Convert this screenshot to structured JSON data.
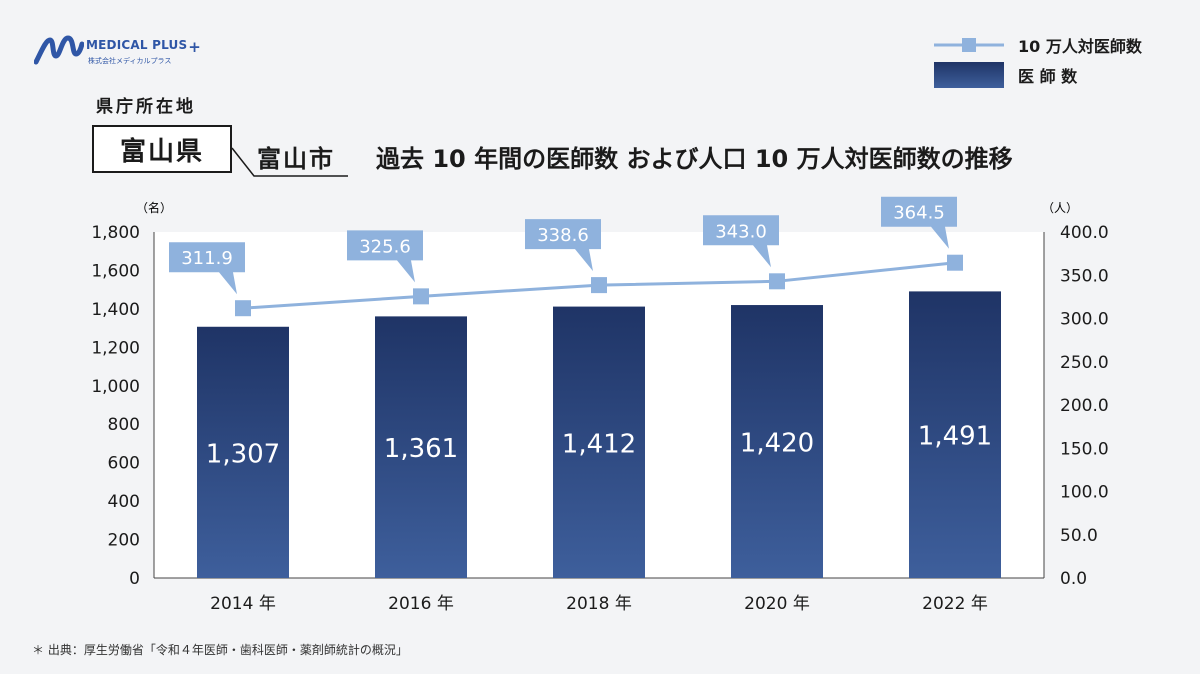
{
  "brand": {
    "name": "MEDICAL PLUS",
    "plus": "+",
    "sub": "株式会社メディカルプラス"
  },
  "header": {
    "capital_label": "県庁所在地",
    "prefecture": "富山県",
    "city": "富山市",
    "title": "過去 10 年間の医師数 および人口 10 万人対医師数の推移"
  },
  "legend": {
    "line_label": "10 万人対医師数",
    "bar_label": "医 師 数"
  },
  "colors": {
    "bar_top": "#1f3466",
    "bar_bottom": "#3e5f9c",
    "line": "#8fb2dd",
    "callout": "#8fb2dd",
    "callout_text": "#ffffff"
  },
  "chart_data": {
    "type": "bar",
    "categories": [
      "2014 年",
      "2016 年",
      "2018 年",
      "2020 年",
      "2022 年"
    ],
    "series": [
      {
        "name": "医 師 数",
        "type": "bar",
        "axis": "left",
        "values": [
          1307,
          1361,
          1412,
          1420,
          1491
        ],
        "value_labels": [
          "1,307",
          "1,361",
          "1,412",
          "1,420",
          "1,491"
        ]
      },
      {
        "name": "10 万人対医師数",
        "type": "line",
        "axis": "right",
        "values": [
          311.9,
          325.6,
          338.6,
          343.0,
          364.5
        ],
        "value_labels": [
          "311.9",
          "325.6",
          "338.6",
          "343.0",
          "364.5"
        ]
      }
    ],
    "y_left": {
      "unit": "（名）",
      "range": [
        0,
        1800
      ],
      "ticks": [
        "0",
        "200",
        "400",
        "600",
        "800",
        "1,000",
        "1,200",
        "1,400",
        "1,600",
        "1,800"
      ]
    },
    "y_right": {
      "unit": "（人）",
      "range": [
        0,
        400
      ],
      "ticks": [
        "0.0",
        "50.0",
        "100.0",
        "150.0",
        "200.0",
        "250.0",
        "300.0",
        "350.0",
        "400.0"
      ]
    },
    "grid": false
  },
  "footer": {
    "source": "＊ 出典：厚生労働省「令和４年医師・歯科医師・薬剤師統計の概況」"
  }
}
